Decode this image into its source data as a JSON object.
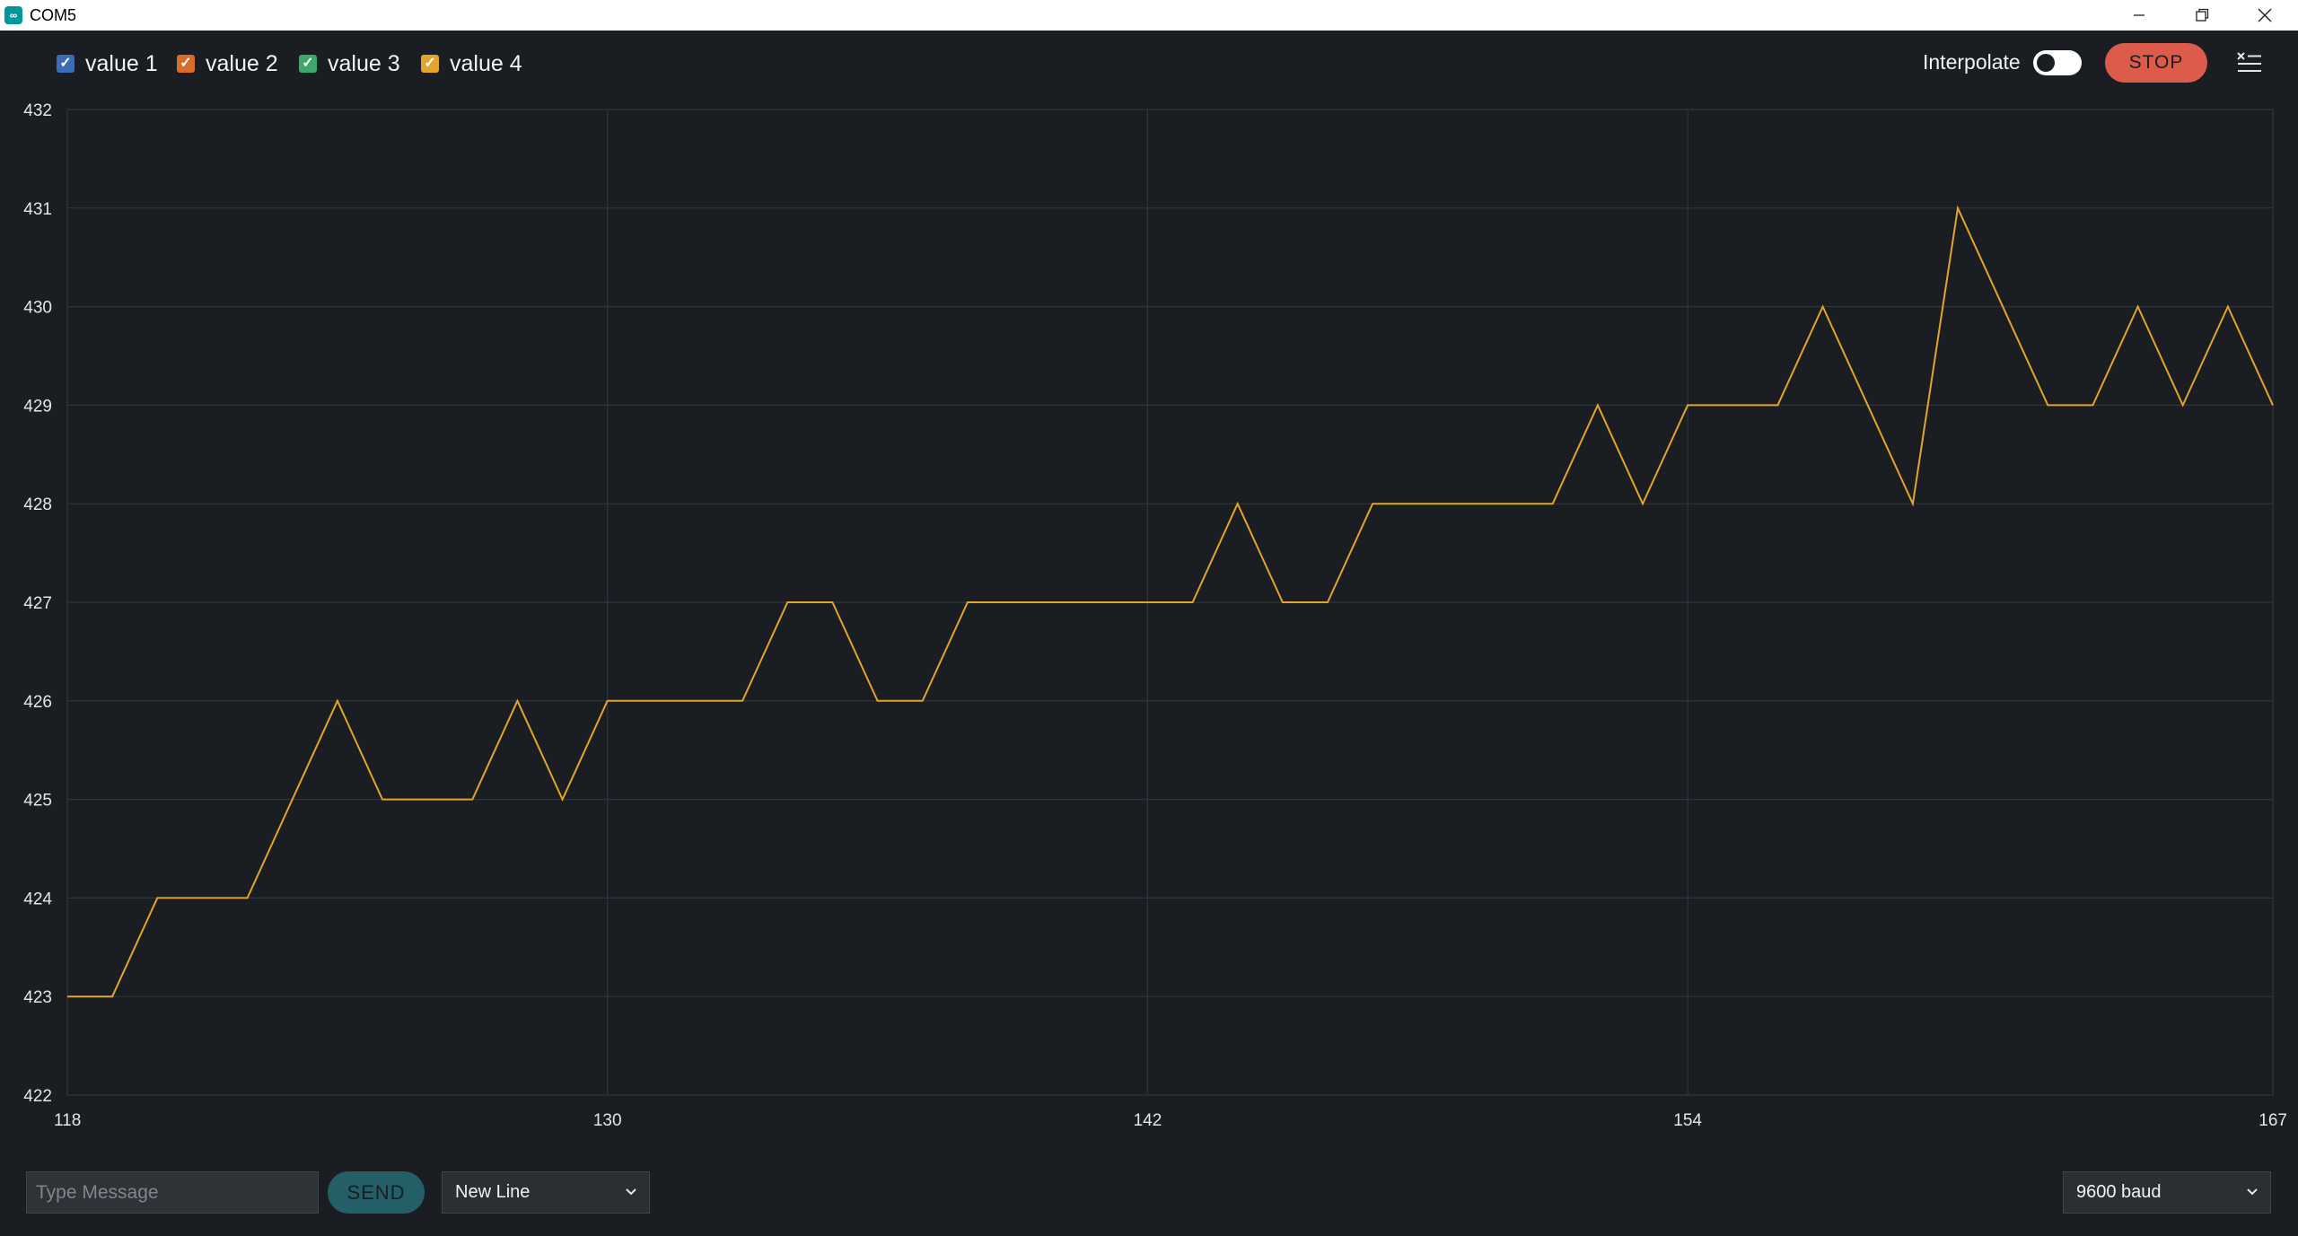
{
  "window": {
    "title": "COM5",
    "icon": "arduino-infinity-icon"
  },
  "legend": [
    {
      "label": "value 1",
      "color": "#3b6db5",
      "checked": true
    },
    {
      "label": "value 2",
      "color": "#d96b2b",
      "checked": true
    },
    {
      "label": "value 3",
      "color": "#3ea86a",
      "checked": true
    },
    {
      "label": "value 4",
      "color": "#e2a52a",
      "checked": true
    }
  ],
  "toolbar": {
    "interpolate_label": "Interpolate",
    "interpolate_on": false,
    "stop_label": "STOP",
    "clear_icon": "clear-list-icon"
  },
  "chart_data": {
    "type": "line",
    "x_ticks": [
      118,
      130,
      142,
      154,
      167
    ],
    "y_ticks": [
      422,
      423,
      424,
      425,
      426,
      427,
      428,
      429,
      430,
      431,
      432
    ],
    "xlim": [
      118,
      167
    ],
    "ylim": [
      422,
      432
    ],
    "grid": true,
    "series": [
      {
        "color": "#e2a52a",
        "x": [
          118,
          119,
          120,
          121,
          122,
          123,
          124,
          125,
          126,
          127,
          128,
          129,
          130,
          131,
          132,
          133,
          134,
          135,
          136,
          137,
          138,
          139,
          140,
          141,
          142,
          143,
          144,
          145,
          146,
          147,
          148,
          149,
          150,
          151,
          152,
          153,
          154,
          155,
          156,
          157,
          158,
          159,
          160,
          161,
          162,
          163,
          164,
          165,
          166,
          167
        ],
        "values": [
          423,
          423,
          424,
          424,
          424,
          425,
          426,
          425,
          425,
          425,
          426,
          425,
          426,
          426,
          426,
          426,
          427,
          427,
          426,
          426,
          427,
          427,
          427,
          427,
          427,
          427,
          428,
          427,
          427,
          428,
          428,
          428,
          428,
          428,
          429,
          428,
          429,
          429,
          429,
          430,
          429,
          428,
          431,
          430,
          429,
          429,
          430,
          429,
          430,
          429
        ]
      }
    ]
  },
  "bottom": {
    "message_placeholder": "Type Message",
    "send_label": "SEND",
    "line_ending": "New Line",
    "baud": "9600 baud"
  }
}
